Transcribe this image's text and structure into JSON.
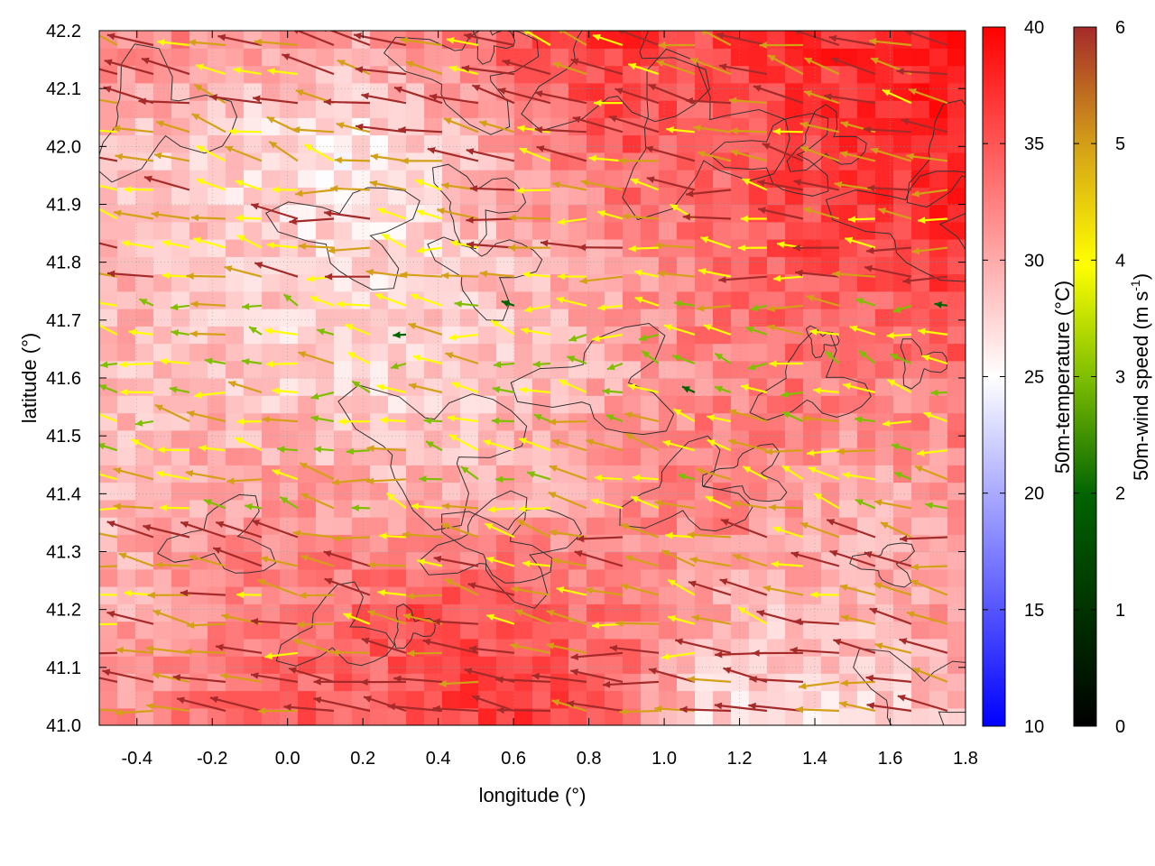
{
  "chart_data": {
    "type": "heatmap",
    "description_fields": {
      "overlay": "wind vector arrows colored by speed with dark topography contour lines"
    },
    "xlabel": "longitude (°)",
    "ylabel": "latitude (°)",
    "xlim": [
      -0.5,
      1.8
    ],
    "ylim": [
      41.0,
      42.2
    ],
    "x_ticks": [
      "-0.4",
      "-0.2",
      "0.0",
      "0.2",
      "0.4",
      "0.6",
      "0.8",
      "1.0",
      "1.2",
      "1.4",
      "1.6",
      "1.8"
    ],
    "x_tick_values": [
      -0.4,
      -0.2,
      0.0,
      0.2,
      0.4,
      0.6,
      0.8,
      1.0,
      1.2,
      1.4,
      1.6,
      1.8
    ],
    "y_ticks": [
      "41.0",
      "41.1",
      "41.2",
      "41.3",
      "41.4",
      "41.5",
      "41.6",
      "41.7",
      "41.8",
      "41.9",
      "42.0",
      "42.1",
      "42.2"
    ],
    "y_tick_values": [
      41.0,
      41.1,
      41.2,
      41.3,
      41.4,
      41.5,
      41.6,
      41.7,
      41.8,
      41.9,
      42.0,
      42.1,
      42.2
    ],
    "grid": true,
    "temperature_colorbar": {
      "label": "50m-temperature (°C)",
      "range": [
        10,
        40
      ],
      "ticks": [
        "10",
        "15",
        "20",
        "25",
        "30",
        "35",
        "40"
      ],
      "tick_values": [
        10,
        15,
        20,
        25,
        30,
        35,
        40
      ],
      "colors": [
        "#0000ff",
        "#ffffff",
        "#ff0000"
      ]
    },
    "wind_colorbar": {
      "label_main": "50m-wind speed (m s",
      "label_sup": "-1",
      "label_end": ")",
      "range": [
        0,
        6
      ],
      "ticks": [
        "0",
        "1",
        "2",
        "3",
        "4",
        "5",
        "6"
      ],
      "tick_values": [
        0,
        1,
        2,
        3,
        4,
        5,
        6
      ],
      "colors": [
        "#000000",
        "#006400",
        "#7fbf00",
        "#ffff00",
        "#d4a017",
        "#a52a2a"
      ]
    },
    "temperature_field": {
      "description": "approximate 50m-temperature in °C, rows from south (41.0) to north (42.2), columns from west (-0.5) to east (1.8)",
      "grid_lon": [
        -0.5,
        -0.27,
        -0.04,
        0.19,
        0.42,
        0.65,
        0.88,
        1.11,
        1.34,
        1.57,
        1.8
      ],
      "grid_lat": [
        41.0,
        41.2,
        41.4,
        41.6,
        41.8,
        42.0,
        42.2
      ],
      "values": [
        [
          31,
          33,
          35,
          34,
          36,
          37,
          34,
          27,
          26,
          27,
          29
        ],
        [
          30,
          31,
          33,
          34,
          36,
          34,
          33,
          30,
          29,
          30,
          31
        ],
        [
          29,
          30,
          31,
          30,
          29,
          30,
          31,
          33,
          31,
          30,
          31
        ],
        [
          29,
          29,
          28,
          27,
          28,
          29,
          30,
          32,
          33,
          32,
          34
        ],
        [
          30,
          29,
          28,
          27,
          28,
          29,
          31,
          33,
          35,
          36,
          37
        ],
        [
          29,
          28,
          27,
          26,
          28,
          32,
          35,
          34,
          36,
          37,
          38
        ],
        [
          32,
          32,
          31,
          30,
          33,
          36,
          37,
          36,
          37,
          38,
          38
        ]
      ]
    },
    "wind_field": {
      "description": "approximate 50m wind vectors (u eastward, v northward in m/s) per latitude band",
      "bands": [
        {
          "lat": 41.05,
          "u": -5.5,
          "v": 0.6
        },
        {
          "lat": 41.25,
          "u": -4.5,
          "v": 1.0
        },
        {
          "lat": 41.45,
          "u": -3.5,
          "v": 0.8
        },
        {
          "lat": 41.65,
          "u": -3.0,
          "v": 0.5
        },
        {
          "lat": 41.85,
          "u": -4.5,
          "v": 0.6
        },
        {
          "lat": 42.05,
          "u": -5.0,
          "v": 1.2
        }
      ]
    }
  }
}
